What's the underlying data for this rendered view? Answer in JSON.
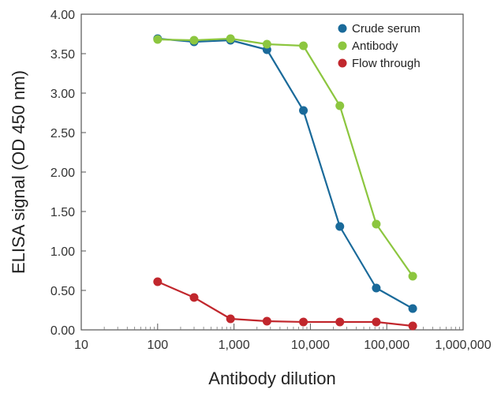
{
  "chart_data": {
    "type": "line",
    "xlabel": "Antibody dilution",
    "ylabel": "ELISA signal (OD 450 nm)",
    "xscale": "log",
    "xlim": [
      10,
      1000000
    ],
    "ylim": [
      0,
      4
    ],
    "x_ticks": [
      "10",
      "100",
      "1,000",
      "10,000",
      "100,000",
      "1,000,000"
    ],
    "y_ticks": [
      "0.00",
      "0.50",
      "1.00",
      "1.50",
      "2.00",
      "2.50",
      "3.00",
      "3.50",
      "4.00"
    ],
    "legend_position": "top-right",
    "series": [
      {
        "name": "Crude serum",
        "color": "#1a6a9a",
        "x": [
          100,
          300,
          900,
          2700,
          8100,
          24300,
          72900,
          218700
        ],
        "y": [
          3.69,
          3.65,
          3.67,
          3.55,
          2.78,
          1.31,
          0.53,
          0.27
        ]
      },
      {
        "name": "Antibody",
        "color": "#8cc63f",
        "x": [
          100,
          300,
          900,
          2700,
          8100,
          24300,
          72900,
          218700
        ],
        "y": [
          3.68,
          3.67,
          3.69,
          3.62,
          3.6,
          2.84,
          1.34,
          0.68
        ]
      },
      {
        "name": "Flow through",
        "color": "#c1272d",
        "x": [
          100,
          300,
          900,
          2700,
          8100,
          24300,
          72900,
          218700
        ],
        "y": [
          0.61,
          0.41,
          0.14,
          0.11,
          0.1,
          0.1,
          0.1,
          0.05
        ]
      }
    ]
  }
}
